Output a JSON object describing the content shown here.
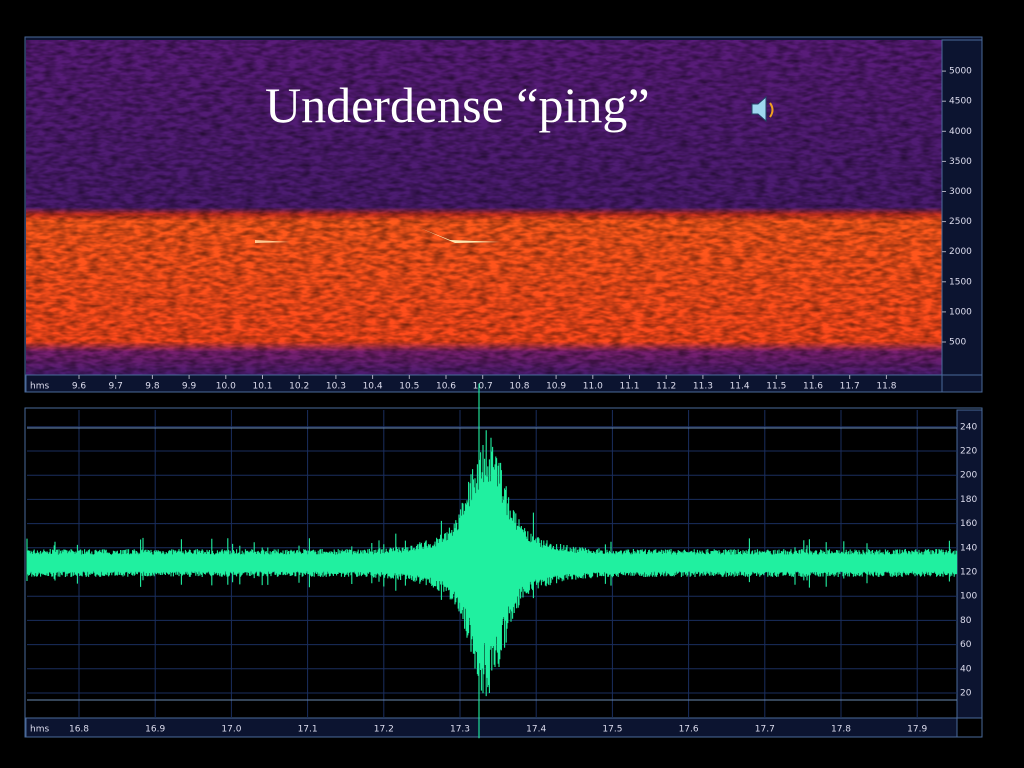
{
  "title": "Underdense “ping”",
  "spectrogram": {
    "x_unit": "hms",
    "xticks": [
      "9.6",
      "9.7",
      "9.8",
      "9.9",
      "10.0",
      "10.1",
      "10.2",
      "10.3",
      "10.4",
      "10.5",
      "10.6",
      "10.7",
      "10.8",
      "10.9",
      "11.0",
      "11.1",
      "11.2",
      "11.3",
      "11.4",
      "11.5",
      "11.6",
      "11.7",
      "11.8"
    ],
    "yticks": [
      "500",
      "1000",
      "1500",
      "2000",
      "2500",
      "3000",
      "3500",
      "4000",
      "4500",
      "5000"
    ]
  },
  "waveform": {
    "x_unit": "hms",
    "xticks": [
      "16.8",
      "16.9",
      "17.0",
      "17.1",
      "17.2",
      "17.3",
      "17.4",
      "17.5",
      "17.6",
      "17.7",
      "17.8",
      "17.9"
    ],
    "yticks": [
      "20",
      "40",
      "60",
      "80",
      "100",
      "120",
      "140",
      "160",
      "180",
      "200",
      "220",
      "240"
    ]
  }
}
